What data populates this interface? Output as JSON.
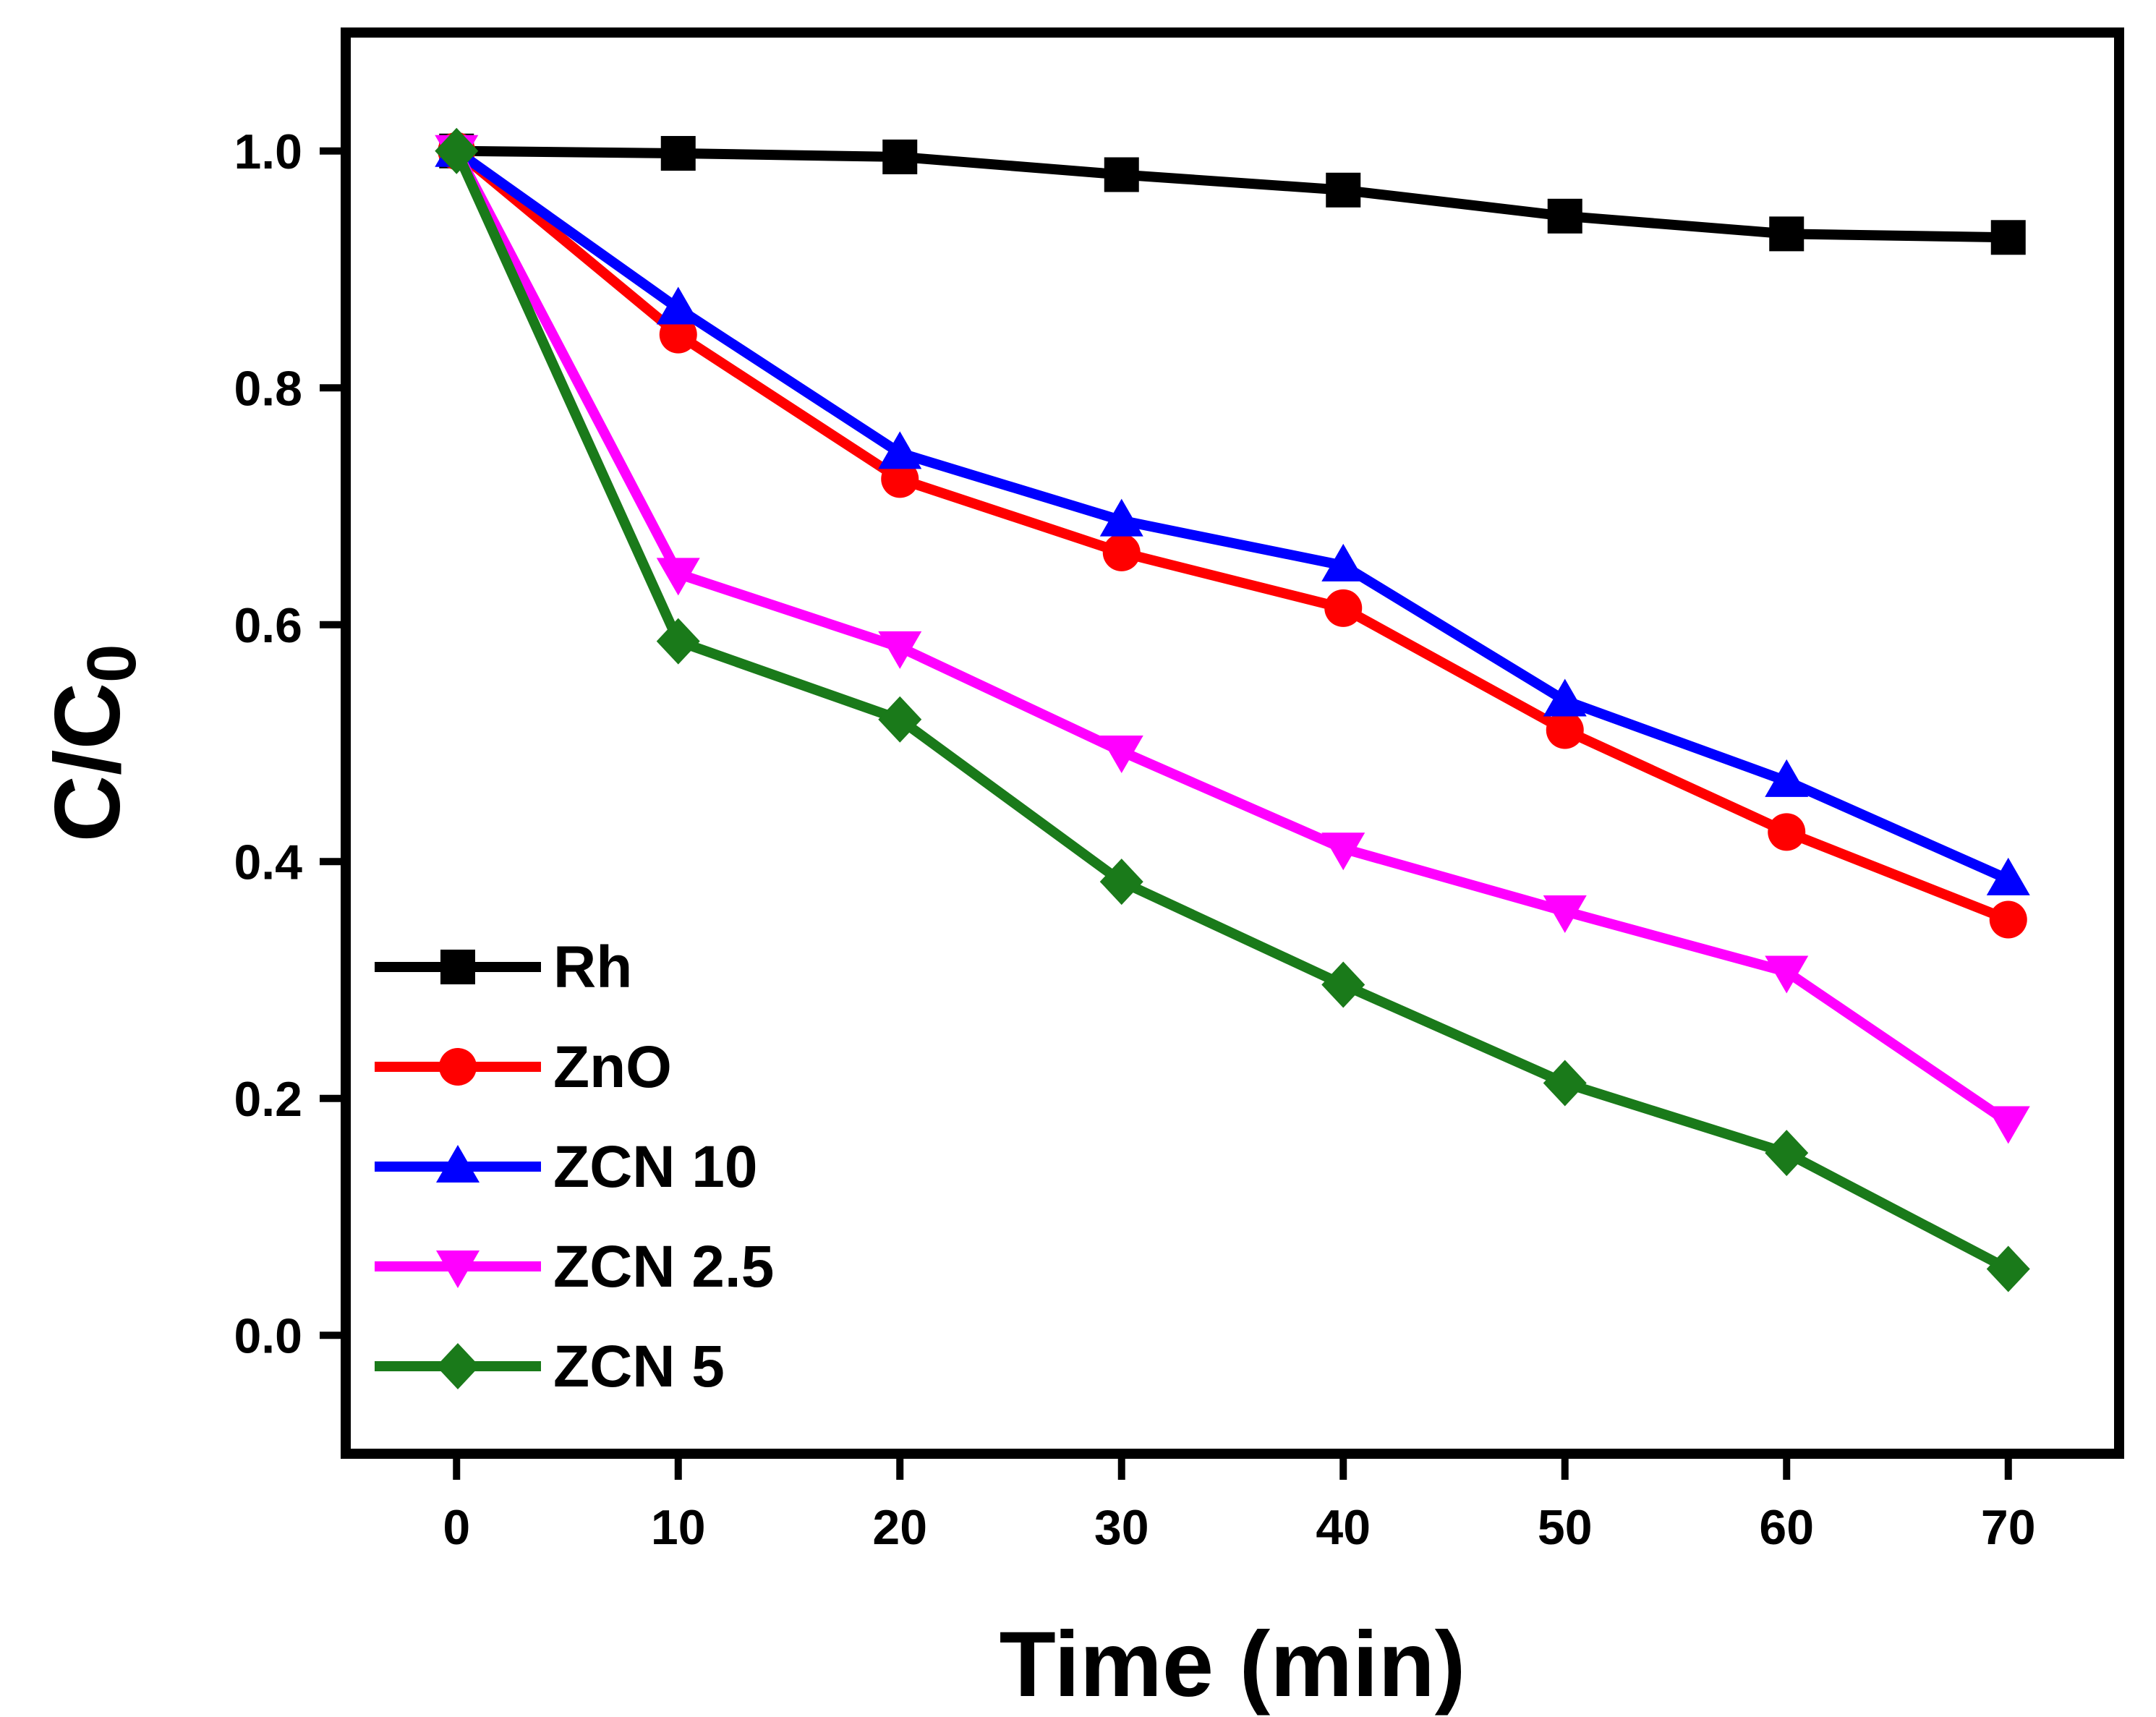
{
  "chart_data": {
    "type": "line",
    "xlabel": "Time (min)",
    "ylabel_main": "C/C",
    "ylabel_sub": "0",
    "xlim": [
      -5,
      75
    ],
    "ylim": [
      -0.1,
      1.1
    ],
    "xticks": [
      0,
      10,
      20,
      30,
      40,
      50,
      60,
      70
    ],
    "xtick_labels": [
      "0",
      "10",
      "20",
      "30",
      "40",
      "50",
      "60",
      "70"
    ],
    "yticks": [
      0.0,
      0.2,
      0.4,
      0.6,
      0.8,
      1.0
    ],
    "ytick_labels": [
      "0.0",
      "0.2",
      "0.4",
      "0.6",
      "0.8",
      "1.0"
    ],
    "grid": false,
    "legend_position": "bottom-left",
    "x": [
      0,
      10,
      20,
      30,
      40,
      50,
      60,
      70
    ],
    "series": [
      {
        "name": "Rh",
        "color": "#000000",
        "marker": "square",
        "values": [
          1.0,
          0.998,
          0.995,
          0.98,
          0.967,
          0.945,
          0.93,
          0.927
        ]
      },
      {
        "name": "ZnO",
        "color": "#ff0000",
        "marker": "circle",
        "values": [
          1.0,
          0.845,
          0.723,
          0.661,
          0.614,
          0.511,
          0.425,
          0.351
        ]
      },
      {
        "name": "ZCN 10",
        "color": "#0000ff",
        "marker": "triangle-up",
        "values": [
          1.0,
          0.867,
          0.745,
          0.688,
          0.65,
          0.536,
          0.468,
          0.385
        ]
      },
      {
        "name": "ZCN 2.5",
        "color": "#ff00ff",
        "marker": "triangle-down",
        "values": [
          1.0,
          0.643,
          0.581,
          0.493,
          0.411,
          0.358,
          0.307,
          0.18
        ]
      },
      {
        "name": "ZCN 5",
        "color": "#1a7a1a",
        "marker": "diamond",
        "values": [
          1.0,
          0.586,
          0.52,
          0.383,
          0.296,
          0.213,
          0.154,
          0.056
        ]
      }
    ]
  }
}
